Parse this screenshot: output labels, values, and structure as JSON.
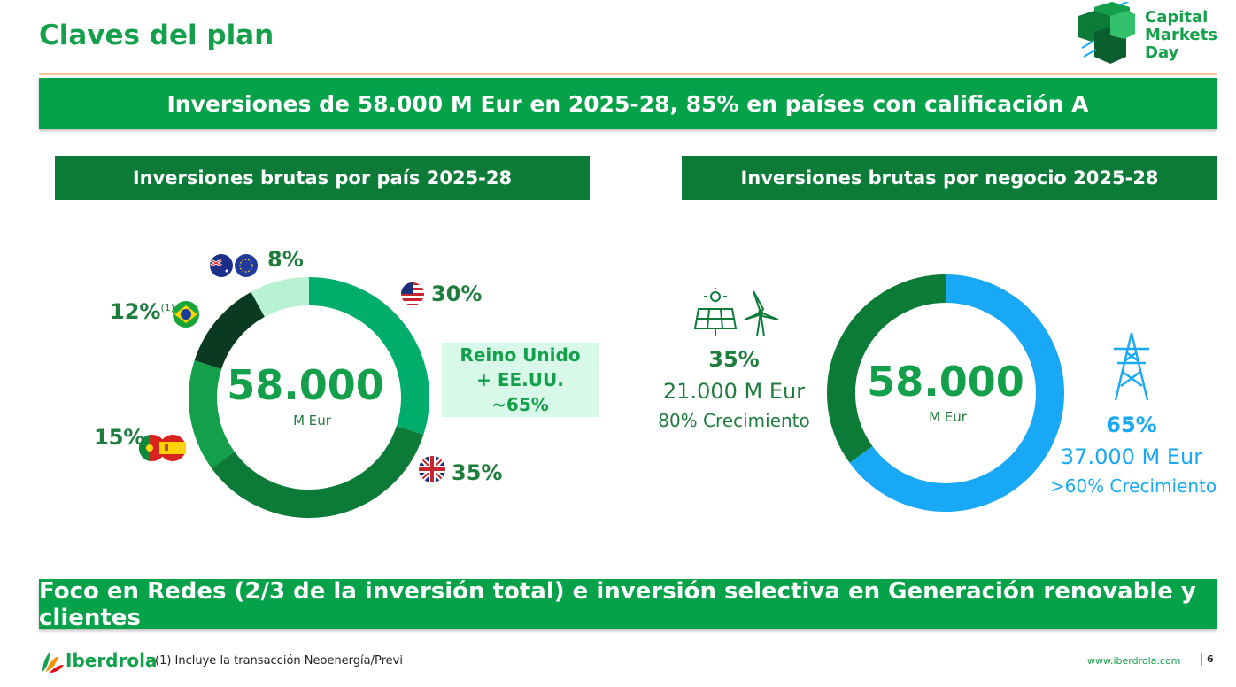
{
  "header": {
    "title": "Claves del plan",
    "logo_text": [
      "Capital",
      "Markets",
      "Day"
    ]
  },
  "top_banner": "Inversiones de 58.000 M Eur en 2025-28, 85% en países con calificación A",
  "left": {
    "heading": "Inversiones brutas por país 2025-28",
    "center_value": "58.000",
    "center_unit": "M Eur",
    "labels": {
      "aus_eu": "8%",
      "brazil": "12%",
      "brazil_note": "(1)",
      "iberia": "15%",
      "usa": "30%",
      "uk": "35%"
    },
    "callout": [
      "Reino Unido",
      "+ EE.UU.",
      "~65%"
    ]
  },
  "right": {
    "heading": "Inversiones brutas por negocio 2025-28",
    "center_value": "58.000",
    "center_unit": "M Eur",
    "generation": {
      "pct": "35%",
      "amount": "21.000 M Eur",
      "growth": "80% Crecimiento"
    },
    "networks": {
      "pct": "65%",
      "amount": "37.000 M Eur",
      "growth": ">60% Crecimiento"
    }
  },
  "bottom_banner": "Foco en Redes (2/3 de la inversión total) e inversión selectiva en Generación renovable y clientes",
  "footer": {
    "brand": "Iberdrola",
    "note": "(1) Incluye la transacción Neoenergía/Previ",
    "url": "www.iberdrola.com",
    "page": "6"
  },
  "colors": {
    "usa": "#00ad6a",
    "uk": "#0b7b37",
    "iberia": "#14a04a",
    "brazil": "#0a3a21",
    "aus_eu": "#b8f2d2",
    "generation": "#0b7b37",
    "networks": "#18a8f5"
  },
  "chart_data": [
    {
      "type": "pie",
      "title": "Inversiones brutas por país 2025-28",
      "categories": [
        "EE.UU.",
        "Reino Unido",
        "España + Portugal",
        "Brasil",
        "Australia + UE"
      ],
      "values": [
        30,
        35,
        15,
        12,
        8
      ],
      "unit": "%",
      "total": "58.000 M Eur"
    },
    {
      "type": "pie",
      "title": "Inversiones brutas por negocio 2025-28",
      "categories": [
        "Generación renovable",
        "Redes"
      ],
      "values": [
        35,
        65
      ],
      "amounts": [
        "21.000 M Eur",
        "37.000 M Eur"
      ],
      "unit": "%",
      "total": "58.000 M Eur"
    }
  ]
}
